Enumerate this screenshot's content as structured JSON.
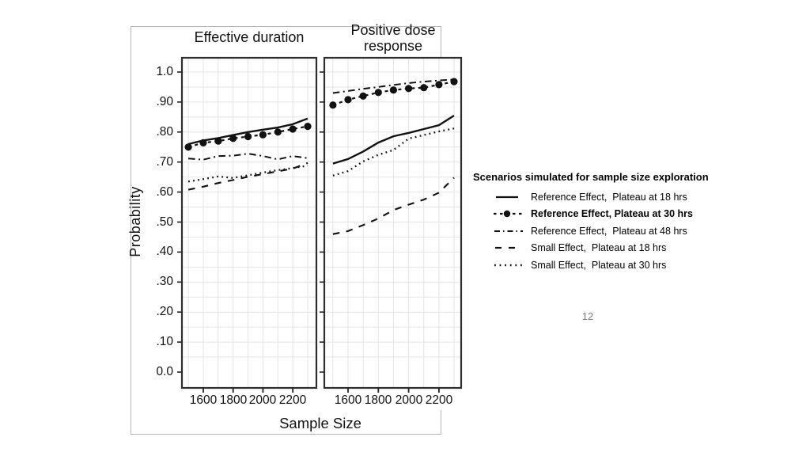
{
  "page": {
    "page_number": "12",
    "background": "#ffffff"
  },
  "figure": {
    "y_axis_label": "Probability",
    "x_axis_label": "Sample Size",
    "y_ticks": [
      {
        "label": "1.0",
        "value": 1.0
      },
      {
        "label": ".90",
        "value": 0.9
      },
      {
        "label": ".80",
        "value": 0.8
      },
      {
        "label": ".70",
        "value": 0.7
      },
      {
        "label": ".60",
        "value": 0.6
      },
      {
        "label": ".50",
        "value": 0.5
      },
      {
        "label": ".40",
        "value": 0.4
      },
      {
        "label": ".30",
        "value": 0.3
      },
      {
        "label": ".20",
        "value": 0.2
      },
      {
        "label": ".10",
        "value": 0.1
      },
      {
        "label": "0.0",
        "value": 0.0
      }
    ],
    "x_ticks": [
      {
        "label": "1600",
        "value": 1600
      },
      {
        "label": "1800",
        "value": 1800
      },
      {
        "label": "2000",
        "value": 2000
      },
      {
        "label": "2200",
        "value": 2200
      }
    ],
    "legend": {
      "title": "Scenarios simulated for sample size exploration",
      "items": [
        {
          "label": "Reference Effect,  Plateau at 18 hrs",
          "style": "solid",
          "bold": false
        },
        {
          "label": "Reference Effect, Plateau at 30 hrs",
          "style": "dash-dot-circle",
          "bold": true
        },
        {
          "label": "Reference Effect,  Plateau at 48 hrs",
          "style": "dash-dash-dot",
          "bold": false
        },
        {
          "label": "Small Effect,  Plateau at 18 hrs",
          "style": "long-dash",
          "bold": false
        },
        {
          "label": "Small Effect,  Plateau at 30 hrs",
          "style": "dotted",
          "bold": false
        }
      ]
    }
  },
  "chart_data": {
    "type": "line",
    "title": "Scenarios simulated for sample size exploration",
    "xlabel": "Sample Size",
    "ylabel": "Probability",
    "x": [
      1500,
      1600,
      1700,
      1800,
      1900,
      2000,
      2100,
      2200,
      2300
    ],
    "ylim": [
      -0.05,
      1.05
    ],
    "y_major_tick_step": 0.1,
    "grid": {
      "shown": true,
      "y_step": 0.05,
      "x_step": 100
    },
    "legend_position": "right of figure",
    "panels": [
      {
        "title": "Effective duration",
        "series": [
          {
            "name": "Reference Effect, Plateau at 18 hrs",
            "style": "solid",
            "values": [
              0.76,
              0.772,
              0.78,
              0.79,
              0.8,
              0.808,
              0.815,
              0.826,
              0.845
            ]
          },
          {
            "name": "Reference Effect, Plateau at 30 hrs",
            "style": "dash-dot-circle",
            "values": [
              0.75,
              0.764,
              0.77,
              0.779,
              0.785,
              0.791,
              0.8,
              0.81,
              0.819
            ]
          },
          {
            "name": "Reference Effect, Plateau at 48 hrs",
            "style": "dash-dash-dot",
            "values": [
              0.712,
              0.708,
              0.72,
              0.721,
              0.728,
              0.72,
              0.709,
              0.72,
              0.713
            ]
          },
          {
            "name": "Small Effect, Plateau at 18 hrs",
            "style": "long-dash",
            "values": [
              0.608,
              0.618,
              0.63,
              0.64,
              0.651,
              0.66,
              0.669,
              0.678,
              0.697
            ]
          },
          {
            "name": "Small Effect, Plateau at 30 hrs",
            "style": "dotted",
            "values": [
              0.635,
              0.643,
              0.652,
              0.647,
              0.656,
              0.665,
              0.673,
              0.68,
              0.688
            ]
          }
        ]
      },
      {
        "title": "Positive dose response",
        "series": [
          {
            "name": "Reference Effect, Plateau at 18 hrs",
            "style": "solid",
            "values": [
              0.695,
              0.71,
              0.735,
              0.765,
              0.786,
              0.797,
              0.81,
              0.823,
              0.855
            ]
          },
          {
            "name": "Reference Effect, Plateau at 30 hrs",
            "style": "dash-dot-circle",
            "values": [
              0.89,
              0.908,
              0.92,
              0.932,
              0.94,
              0.945,
              0.948,
              0.958,
              0.968
            ]
          },
          {
            "name": "Reference Effect, Plateau at 48 hrs",
            "style": "dash-dash-dot",
            "values": [
              0.93,
              0.937,
              0.944,
              0.95,
              0.957,
              0.963,
              0.968,
              0.972,
              0.975
            ]
          },
          {
            "name": "Small Effect, Plateau at 18 hrs",
            "style": "long-dash",
            "values": [
              0.46,
              0.47,
              0.49,
              0.512,
              0.54,
              0.558,
              0.575,
              0.598,
              0.648
            ]
          },
          {
            "name": "Small Effect, Plateau at 30 hrs",
            "style": "dotted",
            "values": [
              0.655,
              0.67,
              0.702,
              0.724,
              0.74,
              0.778,
              0.79,
              0.802,
              0.812
            ]
          }
        ]
      }
    ]
  },
  "colors": {
    "line": "#111111",
    "grid": "#e4e4e4",
    "panel_border": "#2e2e2e",
    "tick": "#222222",
    "frame_border": "#b5b5b5",
    "text": "#111111",
    "page_number": "#7a7a7a"
  }
}
